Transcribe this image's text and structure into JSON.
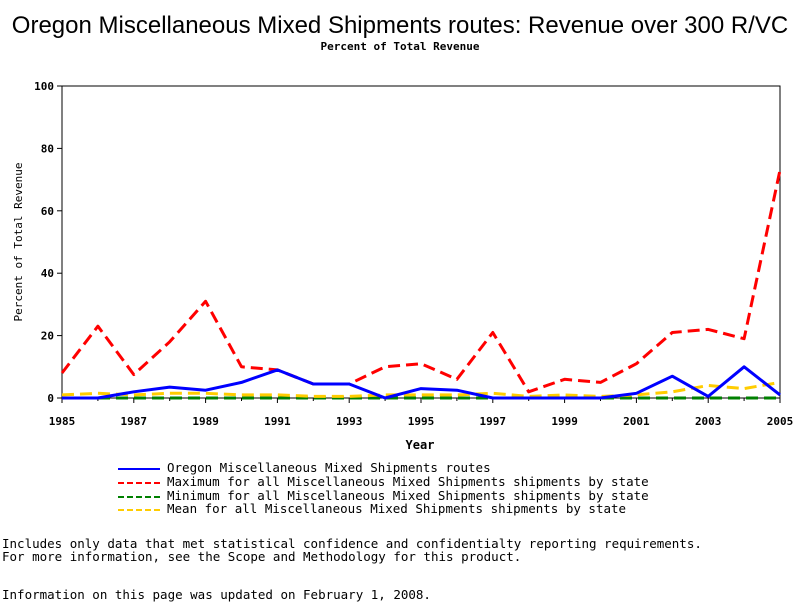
{
  "chart_data": {
    "type": "line",
    "title": "Oregon Miscellaneous Mixed Shipments routes: Revenue over 300 R/VC",
    "subtitle": "Percent of Total Revenue",
    "xlabel": "Year",
    "ylabel": "Percent of Total Revenue",
    "xlim": [
      1985,
      2005
    ],
    "ylim": [
      0,
      100
    ],
    "x_ticks": [
      1985,
      1987,
      1989,
      1991,
      1993,
      1995,
      1997,
      1999,
      2001,
      2003,
      2005
    ],
    "y_ticks": [
      0,
      20,
      40,
      60,
      80,
      100
    ],
    "grid": false,
    "legend_position": "bottom",
    "x": [
      1985,
      1986,
      1987,
      1988,
      1989,
      1990,
      1991,
      1992,
      1993,
      1994,
      1995,
      1996,
      1997,
      1998,
      1999,
      2000,
      2001,
      2002,
      2003,
      2004,
      2005
    ],
    "series": [
      {
        "name": "Oregon Miscellaneous Mixed Shipments routes",
        "color": "#0000ff",
        "dash": "solid",
        "values": [
          0,
          0,
          2,
          3.5,
          2.5,
          5,
          9,
          4.5,
          4.5,
          0,
          3,
          2.5,
          0,
          0,
          0,
          0,
          1.5,
          7,
          0.5,
          10,
          1
        ]
      },
      {
        "name": "Maximum for all Miscellaneous Mixed Shipments shipments by state",
        "color": "#ff0000",
        "dash": "dashed",
        "values": [
          8,
          23,
          7.5,
          18,
          31,
          10,
          9,
          4.5,
          4.5,
          10,
          11,
          6,
          21,
          2,
          6,
          5,
          11,
          21,
          22,
          19,
          73
        ]
      },
      {
        "name": "Minimum for all Miscellaneous Mixed Shipments shipments by state",
        "color": "#008000",
        "dash": "dashed",
        "values": [
          0,
          0,
          0,
          0,
          0,
          0,
          0,
          0,
          0,
          0,
          0,
          0,
          0,
          0,
          0,
          0,
          0,
          0,
          0,
          0,
          0
        ]
      },
      {
        "name": "Mean for all Miscellaneous Mixed Shipments shipments by state",
        "color": "#ffcc00",
        "dash": "dashed",
        "values": [
          1,
          1.5,
          1,
          1.5,
          1.5,
          1,
          1,
          0.5,
          0.5,
          1,
          1,
          1,
          1.5,
          0.5,
          1,
          0.5,
          1,
          2,
          4,
          3,
          5
        ]
      }
    ]
  },
  "notes": [
    "Includes only data that met statistical confidence and confidentialty reporting requirements.",
    "For more information, see the Scope and Methodology for this product."
  ],
  "updated": "Information on this page was updated on February 1, 2008."
}
